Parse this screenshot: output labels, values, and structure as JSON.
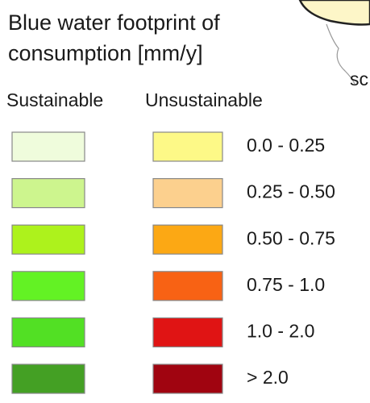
{
  "map_legend": {
    "title": [
      "Blue water footprint of",
      "consumption [mm/y]"
    ],
    "map_fragment_text": "sc",
    "columns": [
      "Sustainable",
      "Unsustainable"
    ],
    "rows": [
      {
        "label": "0.0 - 0.25",
        "sustainable_color": "#effcdc",
        "unsustainable_color": "#fdf987"
      },
      {
        "label": "0.25 - 0.50",
        "sustainable_color": "#cdf58e",
        "unsustainable_color": "#fcd08e"
      },
      {
        "label": "0.50 - 0.75",
        "sustainable_color": "#adf21c",
        "unsustainable_color": "#fca814"
      },
      {
        "label": "0.75 - 1.0",
        "sustainable_color": "#63f224",
        "unsustainable_color": "#f86214"
      },
      {
        "label": "1.0 - 2.0",
        "sustainable_color": "#52e024",
        "unsustainable_color": "#e01414"
      },
      {
        "label": "> 2.0",
        "sustainable_color": "#44a024",
        "unsustainable_color": "#a00410"
      }
    ]
  }
}
